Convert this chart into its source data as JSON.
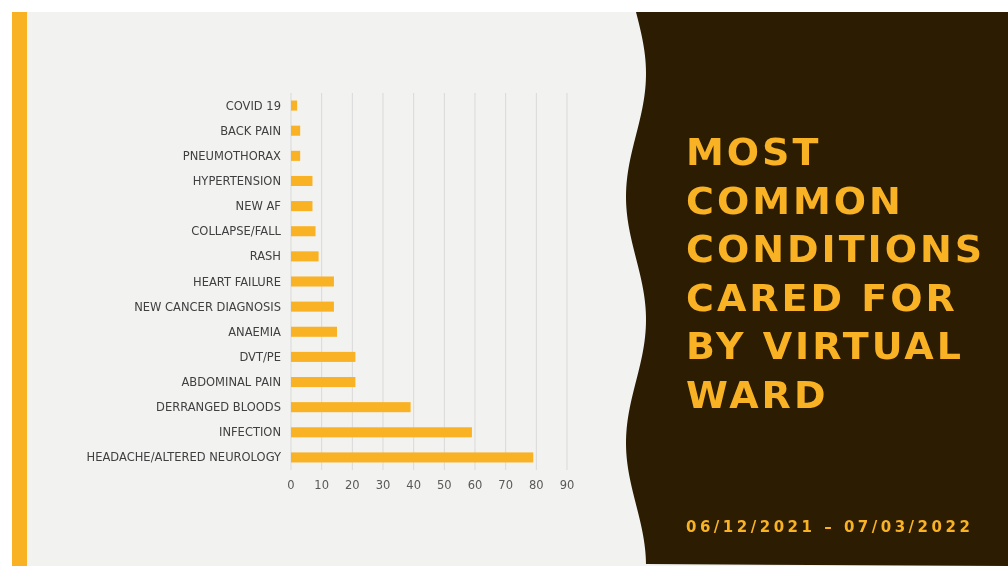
{
  "chart_data": {
    "type": "bar",
    "orientation": "horizontal",
    "title": "MOST COMMON CONDITIONS CARED FOR BY VIRTUAL WARD",
    "subtitle": "06/12/2021 – 07/03/2022",
    "categories": [
      "COVID 19",
      "BACK PAIN",
      "PNEUMOTHORAX",
      "HYPERTENSION",
      "NEW AF",
      "COLLAPSE/FALL",
      "RASH",
      "HEART FAILURE",
      "NEW CANCER DIAGNOSIS",
      "ANAEMIA",
      "DVT/PE",
      "ABDOMINAL PAIN",
      "DERRANGED BLOODS",
      "INFECTION",
      "HEADACHE/ALTERED NEUROLOGY"
    ],
    "values": [
      2,
      3,
      3,
      7,
      7,
      8,
      9,
      14,
      14,
      15,
      21,
      21,
      39,
      59,
      79
    ],
    "color": "#f9b224",
    "xlim": [
      0,
      90
    ],
    "xticks": [
      0,
      10,
      20,
      30,
      40,
      50,
      60,
      70,
      80,
      90
    ],
    "grid": "x"
  }
}
